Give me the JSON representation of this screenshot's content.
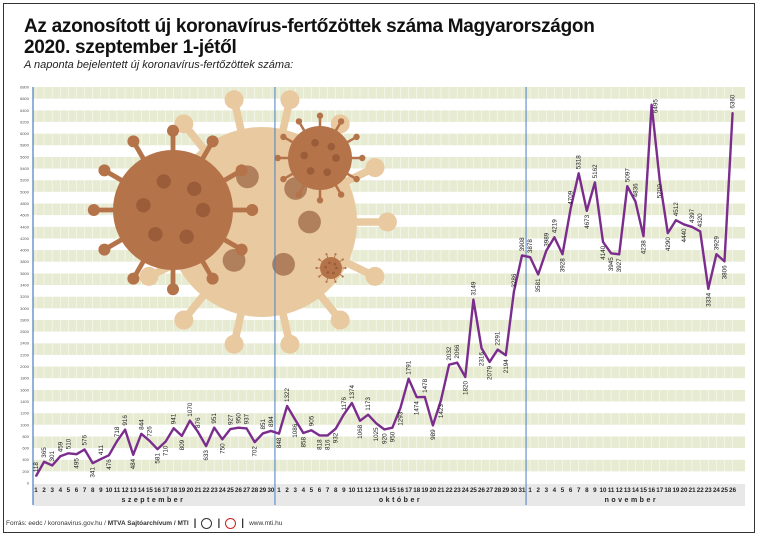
{
  "title_line1": "Az azonosított új koronavírus-fertőzöttek száma Magyarországon",
  "title_line2": "2020. szeptember 1-jétől",
  "subtitle": "A naponta bejelentett új koronavírus-fertőzöttek száma:",
  "footer": {
    "source": "Forrás: eedc / koronavirus.gov.hu / ",
    "source_bold": "MTVA Sajtóarchívum / MTI",
    "website": "www.mti.hu"
  },
  "colors": {
    "line": "#7b2d8e",
    "stripe": "#e6ebd2",
    "axis_band": "#e8e8e8",
    "month_divider": "#4a7fc0",
    "virus": "#b5734a",
    "virus_bg": "#e9c9a0"
  },
  "chart_data": {
    "type": "line",
    "title": "Az azonosított új koronavírus-fertőzöttek száma Magyarországon 2020. szeptember 1-jétől",
    "subtitle": "A naponta bejelentett új koronavírus-fertőzöttek száma:",
    "ylim": [
      0,
      6800
    ],
    "y_tick_step": 200,
    "grid": "horizontal stripes",
    "months": [
      {
        "name": "szeptember",
        "days": 30,
        "values": [
          118,
          365,
          301,
          459,
          510,
          495,
          576,
          341,
          411,
          476,
          718,
          916,
          484,
          844,
          726,
          581,
          710,
          941,
          809,
          1070,
          876,
          633,
          951,
          750,
          927,
          950,
          937,
          702,
          851,
          894
        ]
      },
      {
        "name": "október",
        "days": 31,
        "values": [
          848,
          1322,
          1086,
          858,
          905,
          818,
          816,
          932,
          1176,
          1374,
          1068,
          1173,
          1025,
          920,
          950,
          1293,
          1791,
          1474,
          1478,
          989,
          1423,
          2032,
          2066,
          1820,
          3149,
          2316,
          2079,
          2291,
          2194,
          3286,
          3908
        ]
      },
      {
        "name": "november",
        "days": 26,
        "values": [
          3878,
          3581,
          3989,
          4219,
          3928,
          4709,
          5318,
          4673,
          5162,
          4140,
          3945,
          3927,
          5097,
          4836,
          4238,
          6495,
          5200,
          4290,
          4512,
          4440,
          4397,
          4320,
          3334,
          3929,
          3806,
          6360
        ]
      }
    ]
  }
}
